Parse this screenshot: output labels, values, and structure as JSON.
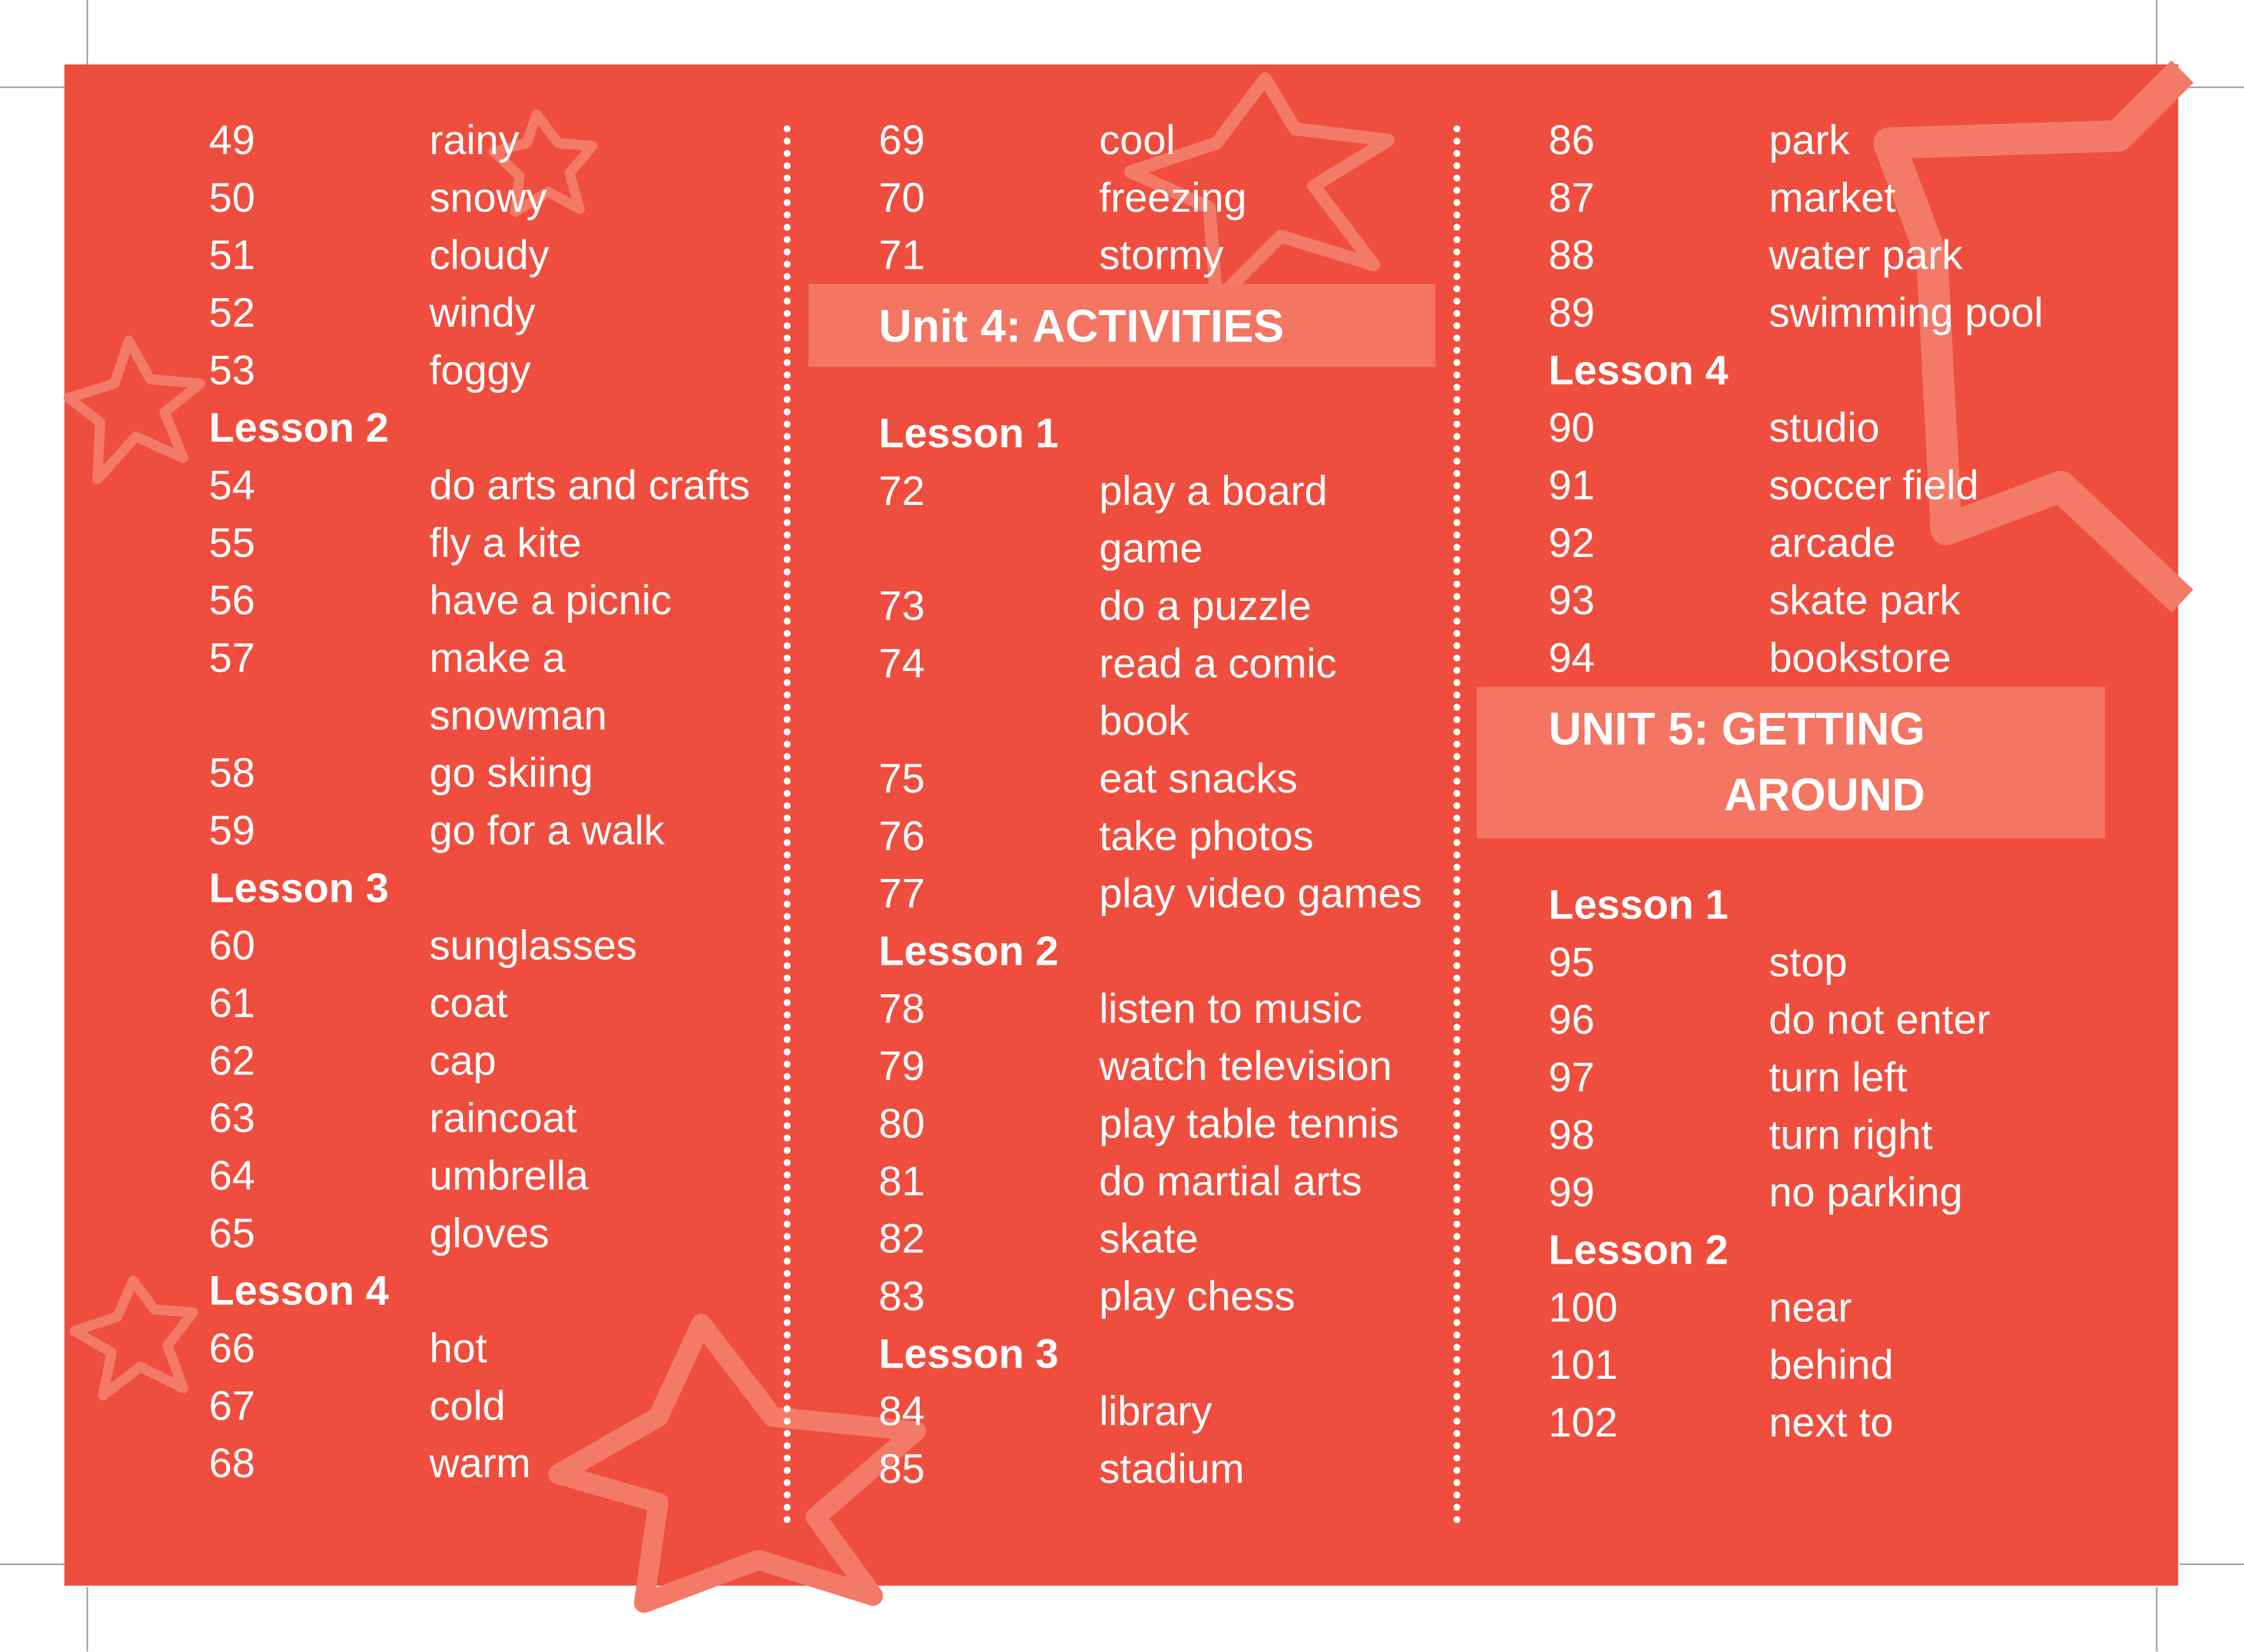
{
  "columns": [
    {
      "entries": [
        {
          "number": "49",
          "word": "rainy"
        },
        {
          "number": "50",
          "word": "snowy"
        },
        {
          "number": "51",
          "word": "cloudy"
        },
        {
          "number": "52",
          "word": "windy"
        },
        {
          "number": "53",
          "word": "foggy"
        },
        {
          "heading": "Lesson 2"
        },
        {
          "number": "54",
          "word": "do arts and crafts"
        },
        {
          "number": "55",
          "word": "fly a kite"
        },
        {
          "number": "56",
          "word": "have a picnic"
        },
        {
          "number": "57",
          "word": [
            "make a",
            "snowman"
          ]
        },
        {
          "number": "58",
          "word": "go skiing"
        },
        {
          "number": "59",
          "word": "go for a walk"
        },
        {
          "heading": "Lesson 3"
        },
        {
          "number": "60",
          "word": "sunglasses"
        },
        {
          "number": "61",
          "word": "coat"
        },
        {
          "number": "62",
          "word": "cap"
        },
        {
          "number": "63",
          "word": "raincoat"
        },
        {
          "number": "64",
          "word": "umbrella"
        },
        {
          "number": "65",
          "word": "gloves"
        },
        {
          "heading": "Lesson 4"
        },
        {
          "number": "66",
          "word": "hot"
        },
        {
          "number": "67",
          "word": "cold"
        },
        {
          "number": "68",
          "word": "warm"
        }
      ]
    },
    {
      "entries": [
        {
          "number": "69",
          "word": "cool"
        },
        {
          "number": "70",
          "word": "freezing"
        },
        {
          "number": "71",
          "word": "stormy"
        },
        {
          "unit": [
            "Unit 4: ACTIVITIES"
          ]
        },
        {
          "heading": "Lesson 1"
        },
        {
          "number": "72",
          "word": [
            "play a board",
            "game"
          ]
        },
        {
          "number": "73",
          "word": "do a puzzle"
        },
        {
          "number": "74",
          "word": [
            "read a comic",
            "book"
          ]
        },
        {
          "number": "75",
          "word": "eat snacks"
        },
        {
          "number": "76",
          "word": "take photos"
        },
        {
          "number": "77",
          "word": "play video games"
        },
        {
          "heading": "Lesson 2"
        },
        {
          "number": "78",
          "word": "listen to music"
        },
        {
          "number": "79",
          "word": "watch television"
        },
        {
          "number": "80",
          "word": "play table tennis"
        },
        {
          "number": "81",
          "word": "do martial arts"
        },
        {
          "number": "82",
          "word": "skate"
        },
        {
          "number": "83",
          "word": "play chess"
        },
        {
          "heading": "Lesson 3"
        },
        {
          "number": "84",
          "word": "library"
        },
        {
          "number": "85",
          "word": "stadium"
        }
      ]
    },
    {
      "entries": [
        {
          "number": "86",
          "word": "park"
        },
        {
          "number": "87",
          "word": "market"
        },
        {
          "number": "88",
          "word": "water park"
        },
        {
          "number": "89",
          "word": "swimming pool"
        },
        {
          "heading": "Lesson 4"
        },
        {
          "number": "90",
          "word": "studio"
        },
        {
          "number": "91",
          "word": "soccer field"
        },
        {
          "number": "92",
          "word": "arcade"
        },
        {
          "number": "93",
          "word": "skate park"
        },
        {
          "number": "94",
          "word": "bookstore"
        },
        {
          "unit": [
            "UNIT 5: GETTING",
            "AROUND"
          ]
        },
        {
          "heading": "Lesson 1"
        },
        {
          "number": "95",
          "word": "stop"
        },
        {
          "number": "96",
          "word": "do not enter"
        },
        {
          "number": "97",
          "word": "turn left"
        },
        {
          "number": "98",
          "word": "turn right"
        },
        {
          "number": "99",
          "word": "no parking"
        },
        {
          "heading": "Lesson 2"
        },
        {
          "number": "100",
          "word": "near"
        },
        {
          "number": "101",
          "word": "behind"
        },
        {
          "number": "102",
          "word": "next to"
        }
      ]
    }
  ]
}
